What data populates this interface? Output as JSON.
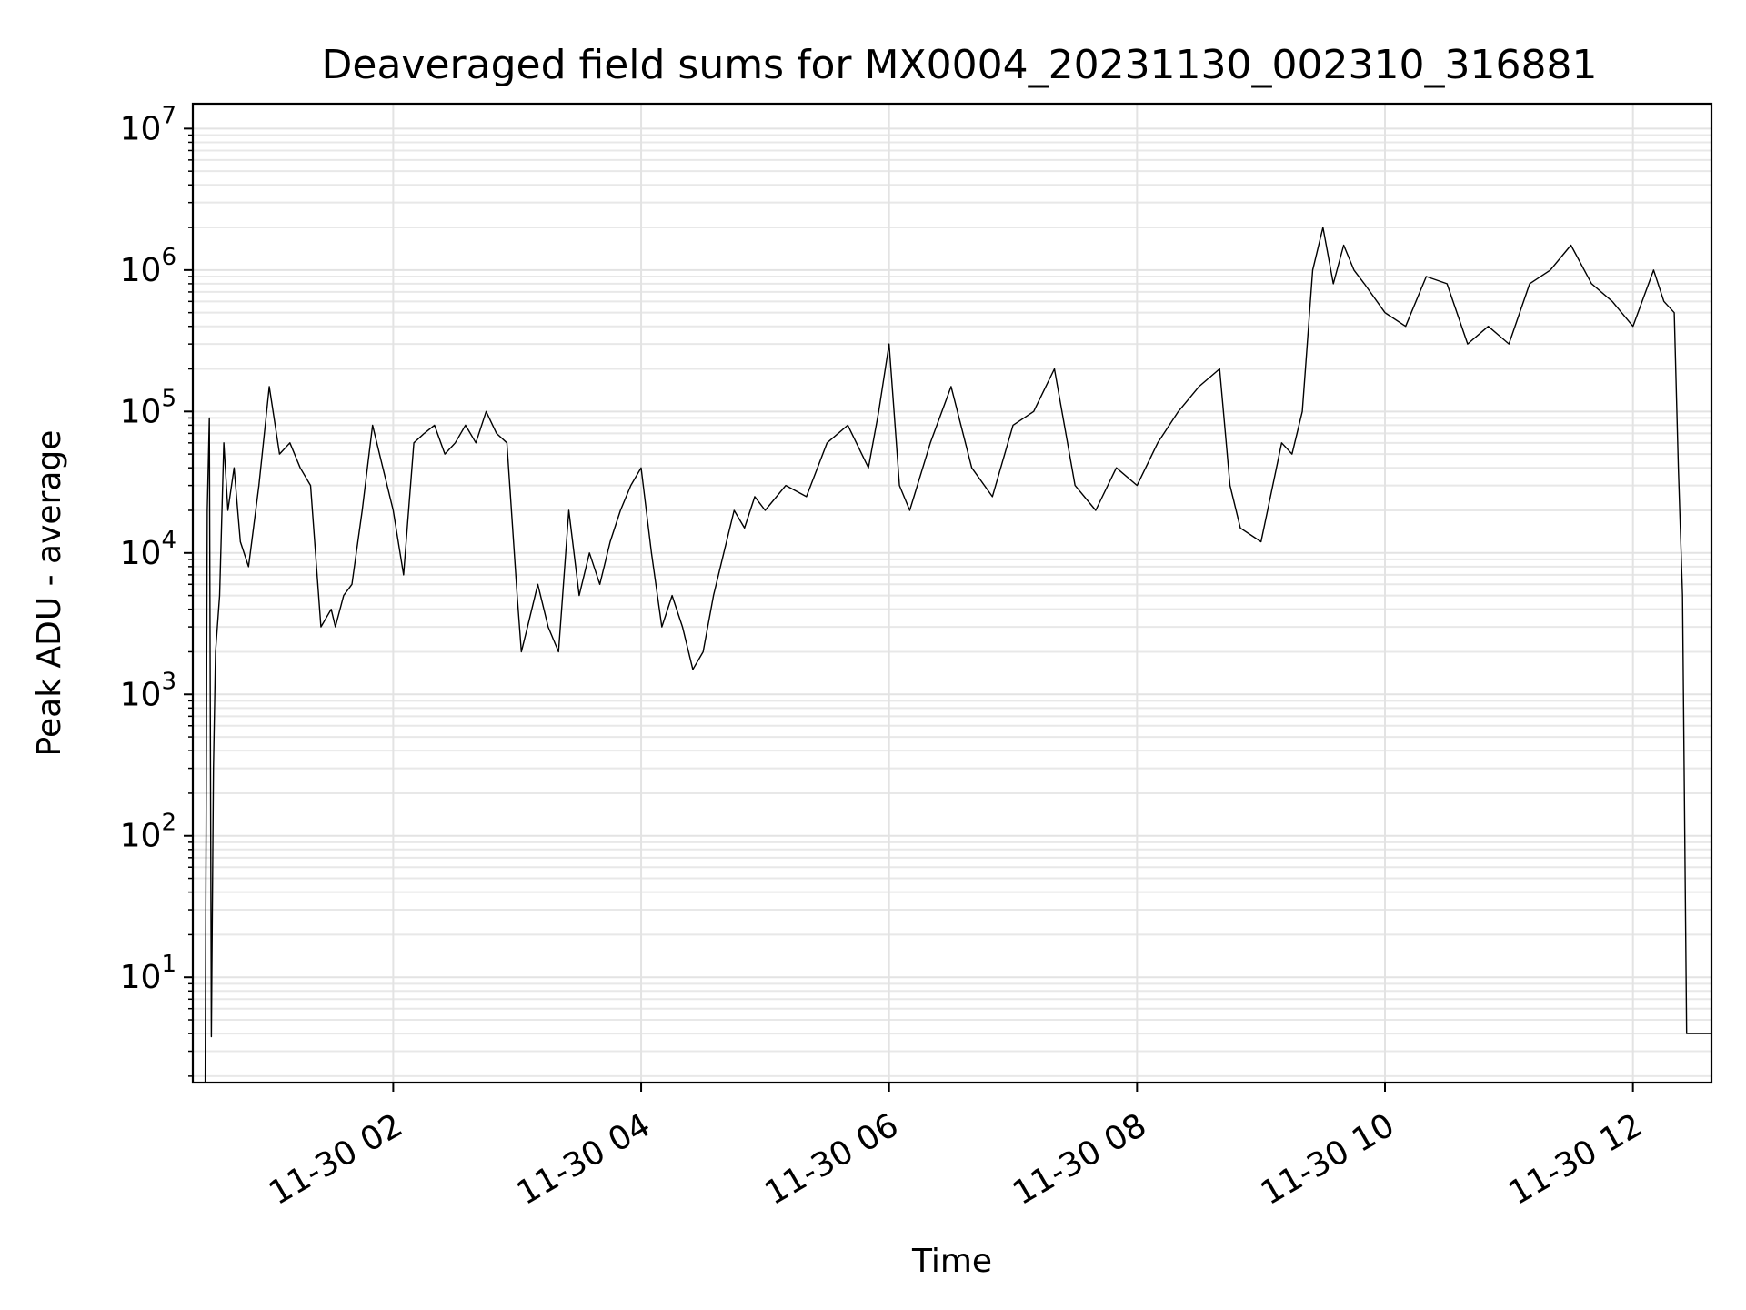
{
  "chart_data": {
    "type": "line",
    "title": "Deaveraged field sums for MX0004_20231130_002310_316881",
    "xlabel": "Time",
    "ylabel": "Peak ADU - average",
    "yscale": "log",
    "ylim": [
      1.8,
      15000000
    ],
    "xlim": [
      "2023-11-30 00:23",
      "2023-11-30 12:38"
    ],
    "grid": true,
    "line_color": "#000000",
    "x_ticks": [
      {
        "label": "11-30 02",
        "value": "2023-11-30 02:00"
      },
      {
        "label": "11-30 04",
        "value": "2023-11-30 04:00"
      },
      {
        "label": "11-30 06",
        "value": "2023-11-30 06:00"
      },
      {
        "label": "11-30 08",
        "value": "2023-11-30 08:00"
      },
      {
        "label": "11-30 10",
        "value": "2023-11-30 10:00"
      },
      {
        "label": "11-30 12",
        "value": "2023-11-30 12:00"
      }
    ],
    "y_ticks": [
      {
        "base": "10",
        "exp": "1",
        "value": 10
      },
      {
        "base": "10",
        "exp": "2",
        "value": 100
      },
      {
        "base": "10",
        "exp": "3",
        "value": 1000
      },
      {
        "base": "10",
        "exp": "4",
        "value": 10000
      },
      {
        "base": "10",
        "exp": "5",
        "value": 100000
      },
      {
        "base": "10",
        "exp": "6",
        "value": 1000000
      },
      {
        "base": "10",
        "exp": "7",
        "value": 10000000
      }
    ],
    "series": [
      {
        "x": [
          "00:29",
          "00:30",
          "00:31",
          "00:32",
          "00:33",
          "00:34",
          "00:36",
          "00:38",
          "00:40",
          "00:43",
          "00:46",
          "00:50",
          "00:55",
          "01:00",
          "01:05",
          "01:10",
          "01:15",
          "01:20",
          "01:25",
          "01:30",
          "01:32",
          "01:36",
          "01:40",
          "01:45",
          "01:50",
          "01:55",
          "02:00",
          "02:05",
          "02:10",
          "02:15",
          "02:20",
          "02:25",
          "02:30",
          "02:35",
          "02:40",
          "02:45",
          "02:50",
          "02:55",
          "03:00",
          "03:02",
          "03:05",
          "03:10",
          "03:15",
          "03:20",
          "03:25",
          "03:30",
          "03:35",
          "03:40",
          "03:45",
          "03:50",
          "03:55",
          "04:00",
          "04:05",
          "04:10",
          "04:15",
          "04:20",
          "04:25",
          "04:30",
          "04:35",
          "04:40",
          "04:45",
          "04:50",
          "04:55",
          "05:00",
          "05:10",
          "05:20",
          "05:30",
          "05:40",
          "05:50",
          "05:55",
          "06:00",
          "06:05",
          "06:10",
          "06:20",
          "06:30",
          "06:40",
          "06:50",
          "07:00",
          "07:10",
          "07:20",
          "07:30",
          "07:40",
          "07:50",
          "08:00",
          "08:10",
          "08:20",
          "08:30",
          "08:40",
          "08:45",
          "08:50",
          "09:00",
          "09:10",
          "09:15",
          "09:20",
          "09:25",
          "09:30",
          "09:35",
          "09:40",
          "09:45",
          "09:50",
          "10:00",
          "10:10",
          "10:20",
          "10:30",
          "10:40",
          "10:50",
          "11:00",
          "11:10",
          "11:20",
          "11:30",
          "11:40",
          "11:50",
          "12:00",
          "12:10",
          "12:15",
          "12:20",
          "12:22",
          "12:24",
          "12:26",
          "12:28",
          "12:30",
          "12:38"
        ],
        "y": [
          1.8,
          20000,
          90000,
          3.8,
          300,
          2000,
          5000,
          60000,
          20000,
          40000,
          12000,
          8000,
          30000,
          150000,
          50000,
          60000,
          40000,
          30000,
          3000,
          4000,
          3000,
          5000,
          6000,
          20000,
          80000,
          40000,
          20000,
          7000,
          60000,
          70000,
          80000,
          50000,
          60000,
          80000,
          60000,
          100000,
          70000,
          60000,
          5000,
          2000,
          3000,
          6000,
          3000,
          2000,
          20000,
          5000,
          10000,
          6000,
          12000,
          20000,
          30000,
          40000,
          10000,
          3000,
          5000,
          3000,
          1500,
          2000,
          5000,
          10000,
          20000,
          15000,
          25000,
          20000,
          30000,
          25000,
          60000,
          80000,
          40000,
          100000,
          300000,
          30000,
          20000,
          60000,
          150000,
          40000,
          25000,
          80000,
          100000,
          200000,
          30000,
          20000,
          40000,
          30000,
          60000,
          100000,
          150000,
          200000,
          30000,
          15000,
          12000,
          60000,
          50000,
          100000,
          1000000,
          2000000,
          800000,
          1500000,
          1000000,
          800000,
          500000,
          400000,
          900000,
          800000,
          300000,
          400000,
          300000,
          800000,
          1000000,
          1500000,
          800000,
          600000,
          400000,
          1000000,
          600000,
          500000,
          40000,
          5000,
          4,
          4,
          4,
          4
        ]
      }
    ]
  }
}
